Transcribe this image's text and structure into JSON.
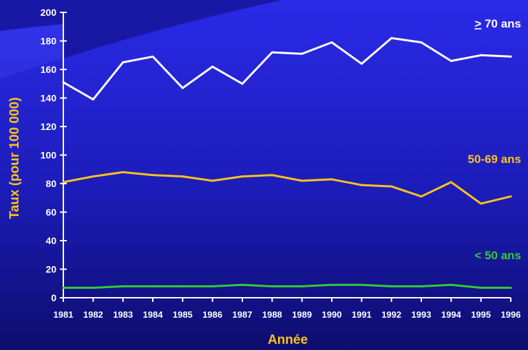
{
  "chart_data": {
    "type": "line",
    "xlabel": "Année",
    "ylabel": "Taux (pour 100 000)",
    "x": [
      1981,
      1982,
      1983,
      1984,
      1985,
      1986,
      1987,
      1988,
      1989,
      1990,
      1991,
      1992,
      1993,
      1994,
      1995,
      1996
    ],
    "xtick_labels": [
      "1981",
      "1982",
      "1983",
      "1984",
      "1985",
      "1986",
      "1987",
      "1988",
      "1989",
      "1990",
      "1991",
      "1992",
      "1993",
      "1994",
      "1995",
      "1996"
    ],
    "ylim": [
      0,
      200
    ],
    "yticks": [
      0,
      20,
      40,
      60,
      80,
      100,
      120,
      140,
      160,
      180,
      200
    ],
    "grid": false,
    "legend": "inline labels at right",
    "series": [
      {
        "name": "> 70 ans",
        "name_prefix": ">",
        "name_rest": " 70 ans",
        "color": "#ffffff",
        "values": [
          151,
          139,
          165,
          169,
          147,
          162,
          150,
          172,
          171,
          179,
          164,
          182,
          179,
          166,
          170,
          169
        ]
      },
      {
        "name": "50-69 ans",
        "color": "#ffc21a",
        "values": [
          81,
          85,
          88,
          86,
          85,
          82,
          85,
          86,
          82,
          83,
          79,
          78,
          71,
          81,
          66,
          71
        ]
      },
      {
        "name": "< 50 ans",
        "color": "#33cc33",
        "values": [
          7,
          7,
          8,
          8,
          8,
          8,
          9,
          8,
          8,
          9,
          9,
          8,
          8,
          9,
          7,
          7
        ]
      }
    ]
  },
  "colors": {
    "background_top": "#2a2ae8",
    "background_bottom": "#0d0d6e",
    "axis": "#ffffff",
    "title_color": "#ffc21a"
  }
}
